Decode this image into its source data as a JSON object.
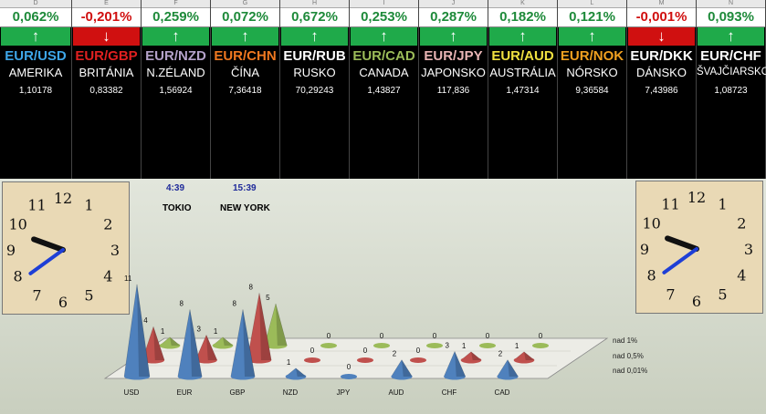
{
  "columns_letters": [
    "D",
    "E",
    "F",
    "G",
    "H",
    "I",
    "J",
    "K",
    "L",
    "M",
    "N"
  ],
  "currencies": [
    {
      "pct": "0,062%",
      "dir": "↑",
      "pair": "EUR/USD",
      "country": "AMERIKA",
      "rate": "1,10178",
      "pair_color": "#3ea6e8",
      "up": true
    },
    {
      "pct": "-0,201%",
      "dir": "↓",
      "pair": "EUR/GBP",
      "country": "BRITÁNIA",
      "rate": "0,83382",
      "pair_color": "#e02020",
      "up": false
    },
    {
      "pct": "0,259%",
      "dir": "↑",
      "pair": "EUR/NZD",
      "country": "N.ZÉLAND",
      "rate": "1,56924",
      "pair_color": "#b4a2c9",
      "up": true
    },
    {
      "pct": "0,072%",
      "dir": "↑",
      "pair": "EUR/CHN",
      "country": "ČÍNA",
      "rate": "7,36418",
      "pair_color": "#f07820",
      "up": true
    },
    {
      "pct": "0,672%",
      "dir": "↑",
      "pair": "EUR/RUB",
      "country": "RUSKO",
      "rate": "70,29243",
      "pair_color": "#ffffff",
      "up": true
    },
    {
      "pct": "0,253%",
      "dir": "↑",
      "pair": "EUR/CAD",
      "country": "CANADA",
      "rate": "1,43827",
      "pair_color": "#9bbb59",
      "up": true
    },
    {
      "pct": "0,287%",
      "dir": "↑",
      "pair": "EUR/JPY",
      "country": "JAPONSKO",
      "rate": "117,836",
      "pair_color": "#e8b4b4",
      "up": true
    },
    {
      "pct": "0,182%",
      "dir": "↑",
      "pair": "EUR/AUD",
      "country": "AUSTRÁLIA",
      "rate": "1,47314",
      "pair_color": "#f0e040",
      "up": true
    },
    {
      "pct": "0,121%",
      "dir": "↑",
      "pair": "EUR/NOK",
      "country": "NÓRSKO",
      "rate": "9,36584",
      "pair_color": "#f0a020",
      "up": true
    },
    {
      "pct": "-0,001%",
      "dir": "↓",
      "pair": "EUR/DKK",
      "country": "DÁNSKO",
      "rate": "7,43986",
      "pair_color": "#ffffff",
      "up": false
    },
    {
      "pct": "0,093%",
      "dir": "↑",
      "pair": "EUR/CHF",
      "country": "ŠVAJČIARSKO",
      "rate": "1,08723",
      "pair_color": "#ffffff",
      "up": true
    }
  ],
  "colors": {
    "up": "#1faa4a",
    "down": "#d01010",
    "pct_up": "#1e8a3a",
    "pct_down": "#d01010"
  },
  "clock_numbers": [
    "12",
    "1",
    "2",
    "3",
    "4",
    "5",
    "6",
    "7",
    "8",
    "9",
    "10",
    "11"
  ],
  "tokio": {
    "time": "4:39",
    "name": "TOKIO",
    "color": "#2a4ad0"
  },
  "newyork": {
    "time": "15:39",
    "name": "NEW YORK",
    "color": "#d02020"
  },
  "chart_data": {
    "type": "bar",
    "style": "3d-cones",
    "categories": [
      "USD",
      "EUR",
      "GBP",
      "NZD",
      "JPY",
      "AUD",
      "CHF",
      "CAD"
    ],
    "series": [
      {
        "name": "nad 1%",
        "color": "#9bbb59",
        "values": [
          1,
          1,
          5,
          0,
          0,
          0,
          0,
          0
        ]
      },
      {
        "name": "nad 0,5%",
        "color": "#c0504d",
        "values": [
          4,
          3,
          8,
          0,
          0,
          0,
          1,
          1
        ]
      },
      {
        "name": "nad 0,01%",
        "color": "#4f81bd",
        "values": [
          11,
          8,
          8,
          1,
          0,
          2,
          3,
          2
        ]
      }
    ],
    "grid": false,
    "legend": "right"
  }
}
